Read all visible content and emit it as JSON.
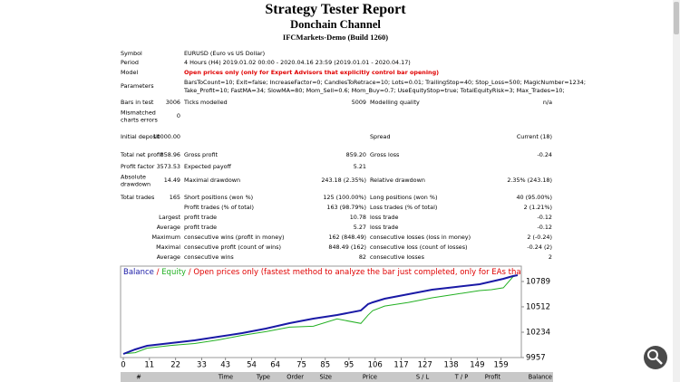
{
  "header": {
    "title": "Strategy Tester Report",
    "subtitle": "Donchain Channel",
    "server": "IFCMarkets-Demo (Build 1260)"
  },
  "summary": {
    "rows": [
      {
        "label": "Symbol",
        "text": "EURUSD (Euro vs US Dollar)"
      },
      {
        "label": "Period",
        "text": "4 Hours (H4) 2019.01.02 00:00 - 2020.04.16 23:59 (2019.01.01 - 2020.04.17)"
      },
      {
        "label": "Model",
        "text": "Open prices only (only for Expert Advisors that explicitly control bar opening)"
      },
      {
        "label": "Parameters",
        "lines": [
          "BarsToCount=10; Exit=false; IncreaseFactor=0; CandlesToRetrace=10; Lots=0.01; TrailingStop=40; Stop_Loss=500; MagicNumber=1234;",
          "Take_Profit=10; FastMA=34; SlowMA=80; Mom_Sell=0.6; Mom_Buy=0.7; UseEquityStop=true; TotalEquityRisk=3; Max_Trades=10;"
        ]
      },
      {
        "label": "Bars in test",
        "value": "3006",
        "label2": "Ticks modelled",
        "value2": "5009",
        "label3": "Modelling quality",
        "value3": "n/a"
      },
      {
        "label": "Mismatched charts errors",
        "value": "0"
      },
      {
        "label": "Initial deposit",
        "value": "10000.00",
        "label3": "Spread",
        "value3": "Current (18)"
      },
      {
        "label": "Total net profit",
        "value": "858.96",
        "label2": "Gross profit",
        "value2": "859.20",
        "label3": "Gross loss",
        "value3": "-0.24"
      },
      {
        "label": "Profit factor",
        "value": "3573.53",
        "label2": "Expected payoff",
        "value2": "5.21"
      },
      {
        "label": "Absolute drawdown",
        "value": "14.49",
        "label2": "Maximal drawdown",
        "value2": "243.18 (2.35%)",
        "label3": "Relative drawdown",
        "value3": "2.35% (243.18)"
      },
      {
        "label": "Total trades",
        "value": "165",
        "label2": "Short positions (won %)",
        "value2": "125 (100.00%)",
        "label3": "Long positions (won %)",
        "value3": "40 (95.00%)"
      },
      {
        "label2": "Profit trades (% of total)",
        "value2": "163 (98.79%)",
        "label3": "Loss trades (% of total)",
        "value3": "2 (1.21%)"
      },
      {
        "value": "Largest",
        "label2": "profit trade",
        "value2": "10.78",
        "label3": "loss trade",
        "value3": "-0.12"
      },
      {
        "value": "Average",
        "label2": "profit trade",
        "value2": "5.27",
        "label3": "loss trade",
        "value3": "-0.12"
      },
      {
        "value": "Maximum",
        "label2": "consecutive wins (profit in money)",
        "value2": "162 (848.49)",
        "label3": "consecutive losses (loss in money)",
        "value3": "2 (-0.24)"
      },
      {
        "value": "Maximal",
        "label2": "consecutive profit (count of wins)",
        "value2": "848.49 (162)",
        "label3": "consecutive loss (count of losses)",
        "value3": "-0.24 (2)"
      },
      {
        "value": "Average",
        "label2": "consecutive wins",
        "value2": "82",
        "label3": "consecutive losses",
        "value3": "2"
      }
    ]
  },
  "chart": {
    "type": "line",
    "legend_separator": " / ",
    "legend_note": "Open prices only (fastest method to analyze the bar just completed, only for EAs that explicitly control b",
    "x": [
      0,
      5,
      10,
      20,
      30,
      40,
      50,
      60,
      70,
      80,
      90,
      100,
      103,
      105,
      110,
      120,
      130,
      140,
      150,
      155,
      160,
      164,
      166
    ],
    "series": [
      {
        "name": "Balance",
        "color": "#1a1aa6",
        "values": [
          9997,
          10046,
          10086,
          10115,
          10145,
          10185,
          10224,
          10274,
          10333,
          10383,
          10422,
          10472,
          10541,
          10561,
          10601,
          10650,
          10700,
          10729,
          10759,
          10789,
          10818,
          10848,
          10858
        ]
      },
      {
        "name": "Equity",
        "color": "#22b022",
        "values": [
          10000,
          10010,
          10060,
          10090,
          10110,
          10150,
          10200,
          10240,
          10290,
          10300,
          10380,
          10330,
          10420,
          10470,
          10520,
          10560,
          10610,
          10650,
          10690,
          10700,
          10720,
          10840,
          10858
        ]
      }
    ],
    "xlim": [
      0,
      167
    ],
    "ylim": [
      9957,
      10957
    ],
    "xticks": [
      0,
      11,
      22,
      33,
      43,
      54,
      64,
      75,
      85,
      95,
      106,
      117,
      127,
      138,
      149,
      159
    ],
    "yticks": [
      9957,
      10234,
      10512,
      10789
    ]
  },
  "table": {
    "columns": [
      "#",
      "Time",
      "Type",
      "Order",
      "Size",
      "Price",
      "S / L",
      "T / P",
      "Profit",
      "Balance"
    ]
  }
}
